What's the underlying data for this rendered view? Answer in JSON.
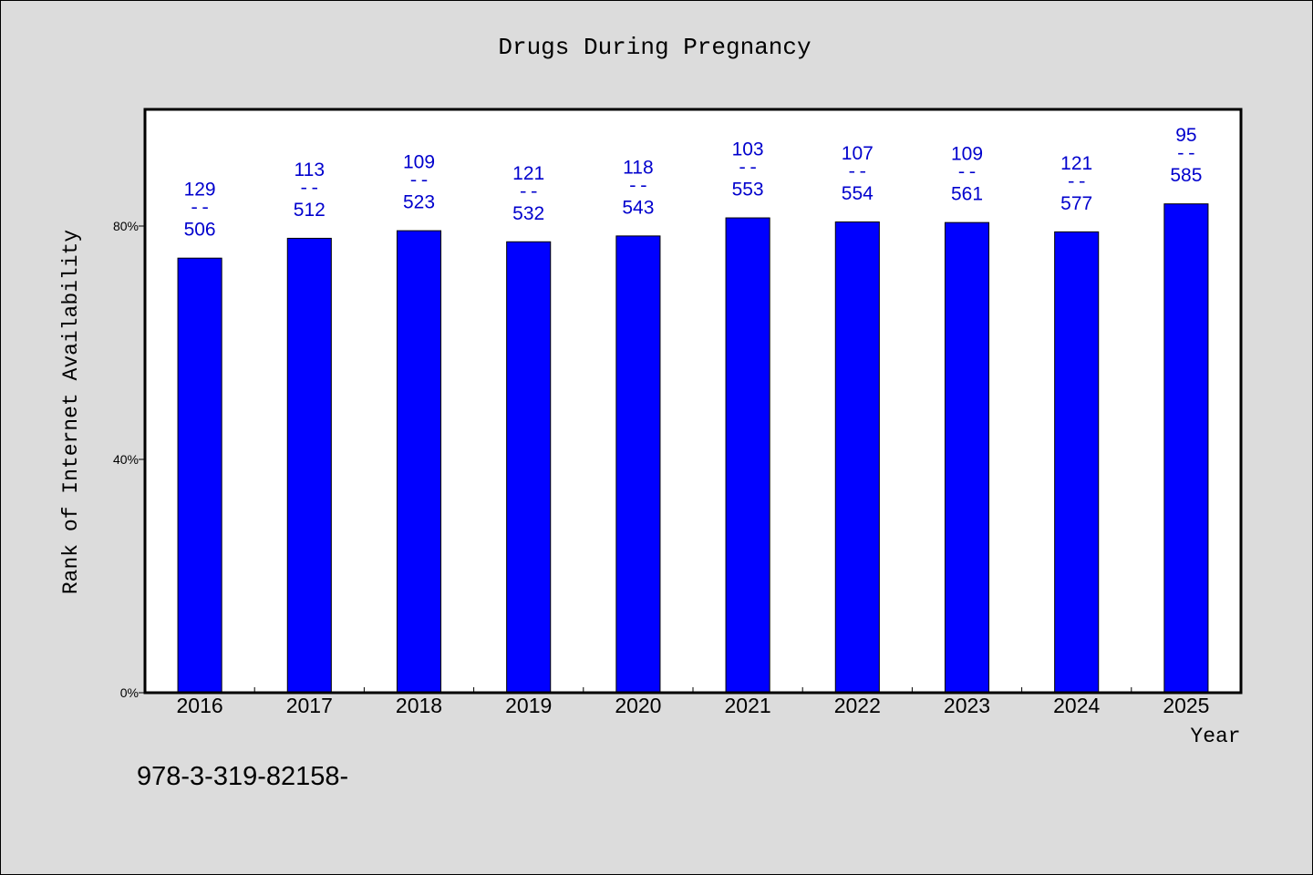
{
  "chart_data": {
    "type": "bar",
    "title": "Drugs During Pregnancy",
    "xlabel": "Year",
    "ylabel": "Rank of Internet Availability",
    "categories": [
      "2016",
      "2017",
      "2018",
      "2019",
      "2020",
      "2021",
      "2022",
      "2023",
      "2024",
      "2025"
    ],
    "values": [
      74.5,
      77.9,
      79.2,
      77.3,
      78.3,
      81.4,
      80.7,
      80.6,
      79.0,
      83.8
    ],
    "ylim": [
      0,
      100
    ],
    "yticks": [
      {
        "value": 0,
        "label": "0%"
      },
      {
        "value": 40,
        "label": "40%"
      },
      {
        "value": 80,
        "label": "80%"
      }
    ],
    "data_labels": {
      "ranks": [
        129,
        113,
        109,
        121,
        118,
        103,
        107,
        109,
        121,
        95
      ],
      "totals": [
        506,
        512,
        523,
        532,
        543,
        553,
        554,
        561,
        577,
        585
      ],
      "separator": "--"
    },
    "grid": false,
    "legend": "none",
    "colors": {
      "background": "#dcdcdc",
      "plot_background": "#ffffff",
      "bar": "#0000ff",
      "bar_edge": "#000000",
      "data_label": "#0000cd"
    }
  },
  "footer": {
    "text": "978-3-319-82158-"
  }
}
